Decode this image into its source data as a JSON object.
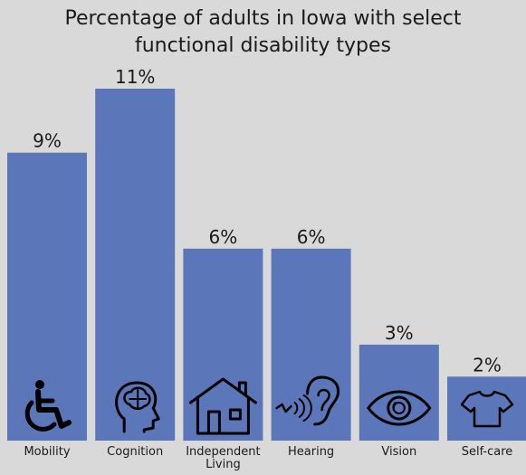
{
  "chart_data": {
    "type": "bar",
    "title_lines": [
      "Percentage of adults in Iowa with select",
      "functional disability types"
    ],
    "categories": [
      "Mobility",
      "Cognition",
      "Independent Living",
      "Hearing",
      "Vision",
      "Self-care"
    ],
    "category_lines": [
      [
        "Mobility"
      ],
      [
        "Cognition"
      ],
      [
        "Independent",
        "Living"
      ],
      [
        "Hearing"
      ],
      [
        "Vision"
      ],
      [
        "Self-care"
      ]
    ],
    "values": [
      9,
      11,
      6,
      6,
      3,
      2
    ],
    "value_labels": [
      "9%",
      "11%",
      "6%",
      "6%",
      "3%",
      "2%"
    ],
    "icons": [
      "wheelchair-icon",
      "brain-head-icon",
      "house-icon",
      "ear-icon",
      "eye-icon",
      "tshirt-icon"
    ],
    "ylim": [
      0,
      11
    ],
    "grid": false,
    "legend": "none",
    "bar_color": "#5b77b9",
    "background_color": "#d9d9d9",
    "text_color": "#1a1a1a"
  }
}
